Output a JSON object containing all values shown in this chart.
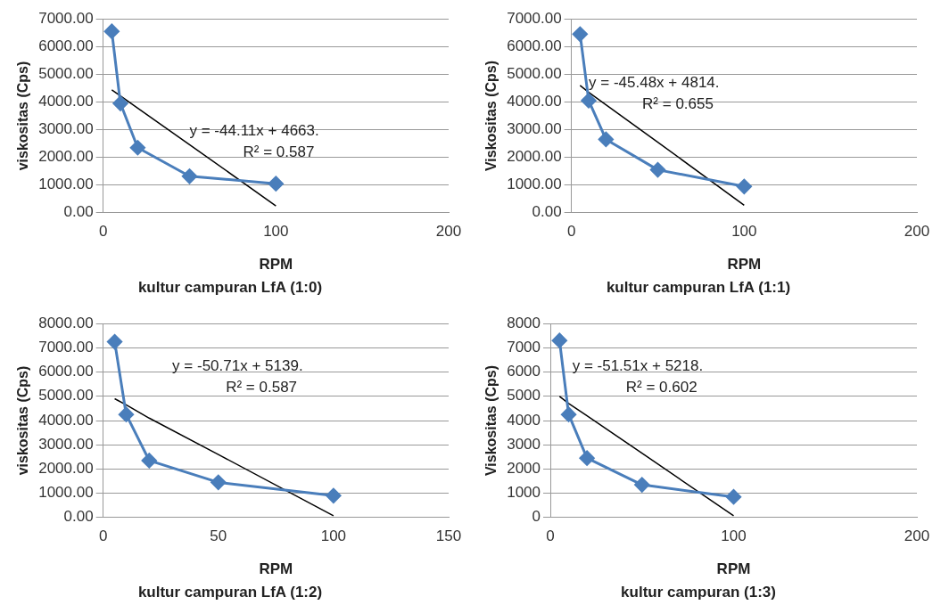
{
  "chart_data": [
    {
      "type": "line",
      "title": "kultur campuran LfA (1:0)",
      "xlabel": "RPM",
      "ylabel": "viskositas (Cps)",
      "x": [
        5,
        10,
        20,
        50,
        100
      ],
      "marker": "diamond",
      "grid": "y",
      "legend": false,
      "series": [
        {
          "color": "#4a7ebb",
          "values": [
            6550,
            3950,
            2350,
            1320,
            1050
          ]
        },
        {
          "color": "#000000",
          "values": [
            4440,
            4220,
            3780,
            2460,
            250
          ],
          "marker": "none"
        }
      ],
      "xlim": [
        0,
        200
      ],
      "xticks": [
        0,
        100,
        200
      ],
      "ylim": [
        0,
        7000
      ],
      "yticks": [
        {
          "value": 0,
          "label": "0.00"
        },
        {
          "value": 1000,
          "label": "1000.00"
        },
        {
          "value": 2000,
          "label": "2000.00"
        },
        {
          "value": 3000,
          "label": "3000.00"
        },
        {
          "value": 4000,
          "label": "4000.00"
        },
        {
          "value": 5000,
          "label": "5000.00"
        },
        {
          "value": 6000,
          "label": "6000.00"
        },
        {
          "value": 7000,
          "label": "7000.00"
        }
      ],
      "annotations": [
        "y = -44.11x + 4663.",
        "R² = 0.587"
      ]
    },
    {
      "type": "line",
      "title": "kultur campuran LfA (1:1)",
      "xlabel": "RPM",
      "ylabel": "Viskositas (Cps)",
      "x": [
        5,
        10,
        20,
        50,
        100
      ],
      "marker": "diamond",
      "grid": "y",
      "legend": false,
      "series": [
        {
          "color": "#4a7ebb",
          "values": [
            6450,
            4050,
            2650,
            1550,
            950
          ]
        },
        {
          "color": "#000000",
          "values": [
            4600,
            4350,
            3900,
            2550,
            270
          ],
          "marker": "none"
        }
      ],
      "xlim": [
        0,
        200
      ],
      "xticks": [
        0,
        100,
        200
      ],
      "ylim": [
        0,
        7000
      ],
      "yticks": [
        {
          "value": 0,
          "label": "0.00"
        },
        {
          "value": 1000,
          "label": "1000.00"
        },
        {
          "value": 2000,
          "label": "2000.00"
        },
        {
          "value": 3000,
          "label": "3000.00"
        },
        {
          "value": 4000,
          "label": "4000.00"
        },
        {
          "value": 5000,
          "label": "5000.00"
        },
        {
          "value": 6000,
          "label": "6000.00"
        },
        {
          "value": 7000,
          "label": "7000.00"
        }
      ],
      "annotations": [
        "y = -45.48x + 4814.",
        "R² = 0.655"
      ]
    },
    {
      "type": "line",
      "title": "kultur campuran LfA (1:2)",
      "xlabel": "RPM",
      "ylabel": "viskositas (Cps)",
      "x": [
        5,
        10,
        20,
        50,
        100
      ],
      "marker": "diamond",
      "grid": "y",
      "legend": false,
      "series": [
        {
          "color": "#4a7ebb",
          "values": [
            7250,
            4250,
            2350,
            1450,
            900
          ]
        },
        {
          "color": "#000000",
          "values": [
            4900,
            4650,
            4100,
            2600,
            70
          ],
          "marker": "none"
        }
      ],
      "xlim": [
        0,
        150
      ],
      "xticks": [
        0,
        50,
        100,
        150
      ],
      "ylim": [
        0,
        8000
      ],
      "yticks": [
        {
          "value": 0,
          "label": "0.00"
        },
        {
          "value": 1000,
          "label": "1000.00"
        },
        {
          "value": 2000,
          "label": "2000.00"
        },
        {
          "value": 3000,
          "label": "3000.00"
        },
        {
          "value": 4000,
          "label": "4000.00"
        },
        {
          "value": 5000,
          "label": "5000.00"
        },
        {
          "value": 6000,
          "label": "6000.00"
        },
        {
          "value": 7000,
          "label": "7000.00"
        },
        {
          "value": 8000,
          "label": "8000.00"
        }
      ],
      "annotations": [
        "y = -50.71x + 5139.",
        "R² = 0.587"
      ]
    },
    {
      "type": "line",
      "title": "kultur campuran (1:3)",
      "xlabel": "RPM",
      "ylabel": "Viskositas (Cps)",
      "x": [
        5,
        10,
        20,
        50,
        100
      ],
      "marker": "diamond",
      "grid": "y",
      "legend": false,
      "series": [
        {
          "color": "#4a7ebb",
          "values": [
            7300,
            4250,
            2450,
            1350,
            850
          ]
        },
        {
          "color": "#000000",
          "values": [
            5000,
            4700,
            4200,
            2650,
            70
          ],
          "marker": "none"
        }
      ],
      "xlim": [
        0,
        200
      ],
      "xticks": [
        0,
        100,
        200
      ],
      "ylim": [
        0,
        8000
      ],
      "yticks": [
        0,
        1000,
        2000,
        3000,
        4000,
        5000,
        6000,
        7000,
        8000
      ],
      "annotations": [
        "y = -51.51x + 5218.",
        "R² = 0.602"
      ]
    }
  ]
}
